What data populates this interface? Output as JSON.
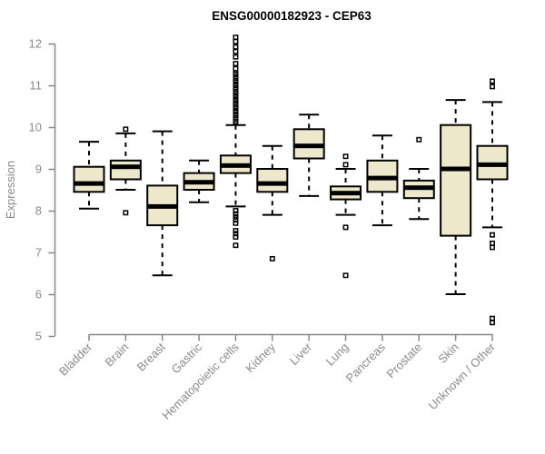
{
  "chart_data": {
    "type": "boxplot",
    "title": "ENSG00000182923 - CEP63",
    "ylabel": "Expression",
    "xlabel": "",
    "ylim": [
      5,
      12
    ],
    "yticks": [
      5,
      6,
      7,
      8,
      9,
      10,
      11,
      12
    ],
    "grid": false,
    "legend": "none",
    "categories": [
      "Bladder",
      "Brain",
      "Breast",
      "Gastric",
      "Hematopoietic cells",
      "Kidney",
      "Liver",
      "Lung",
      "Pancreas",
      "Prostate",
      "Skin",
      "Unknown / Other"
    ],
    "boxes": [
      {
        "category": "Bladder",
        "low": 8.05,
        "q1": 8.45,
        "median": 8.65,
        "q3": 9.05,
        "high": 9.65,
        "outliers": []
      },
      {
        "category": "Brain",
        "low": 8.5,
        "q1": 8.75,
        "median": 9.05,
        "q3": 9.2,
        "high": 9.85,
        "outliers": [
          9.95,
          7.95
        ]
      },
      {
        "category": "Breast",
        "low": 6.45,
        "q1": 7.65,
        "median": 8.1,
        "q3": 8.6,
        "high": 9.9,
        "outliers": []
      },
      {
        "category": "Gastric",
        "low": 8.2,
        "q1": 8.5,
        "median": 8.68,
        "q3": 8.9,
        "high": 9.2,
        "outliers": []
      },
      {
        "category": "Hematopoietic cells",
        "low": 8.1,
        "q1": 8.9,
        "median": 9.08,
        "q3": 9.32,
        "high": 10.05,
        "outliers": [
          12.15,
          12.05,
          11.92,
          11.81,
          11.68,
          11.52,
          11.4,
          11.3,
          11.26,
          11.21,
          11.17,
          11.12,
          11.08,
          11.03,
          10.99,
          10.94,
          10.9,
          10.85,
          10.81,
          10.76,
          10.72,
          10.67,
          10.63,
          10.58,
          10.54,
          10.49,
          10.45,
          10.4,
          10.36,
          10.31,
          10.27,
          10.22,
          10.18,
          10.13,
          8.0,
          7.92,
          7.85,
          7.78,
          7.7,
          7.52,
          7.45,
          7.37,
          7.17
        ]
      },
      {
        "category": "Kidney",
        "low": 7.9,
        "q1": 8.45,
        "median": 8.65,
        "q3": 9.0,
        "high": 9.55,
        "outliers": [
          6.85
        ]
      },
      {
        "category": "Liver",
        "low": 8.35,
        "q1": 9.25,
        "median": 9.55,
        "q3": 9.95,
        "high": 10.3,
        "outliers": []
      },
      {
        "category": "Lung",
        "low": 7.9,
        "q1": 8.27,
        "median": 8.42,
        "q3": 8.58,
        "high": 9.0,
        "outliers": [
          9.3,
          9.1,
          7.6,
          6.45
        ]
      },
      {
        "category": "Pancreas",
        "low": 7.65,
        "q1": 8.45,
        "median": 8.78,
        "q3": 9.2,
        "high": 9.8,
        "outliers": []
      },
      {
        "category": "Prostate",
        "low": 7.8,
        "q1": 8.3,
        "median": 8.55,
        "q3": 8.72,
        "high": 9.0,
        "outliers": [
          9.7
        ]
      },
      {
        "category": "Skin",
        "low": 6.0,
        "q1": 7.4,
        "median": 9.0,
        "q3": 10.05,
        "high": 10.65,
        "outliers": []
      },
      {
        "category": "Unknown / Other",
        "low": 7.6,
        "q1": 8.75,
        "median": 9.1,
        "q3": 9.55,
        "high": 10.6,
        "outliers": [
          11.1,
          10.97,
          7.42,
          7.22,
          7.12,
          5.42,
          5.32
        ]
      }
    ],
    "colors": {
      "box_fill": "#EDE7CB",
      "box_stroke": "#000000",
      "median": "#000000",
      "whisker": "#000000",
      "outlier": "#000000",
      "axis": "#878787",
      "tick_label": "#8A8A8A",
      "title": "#000000",
      "background": "#FFFFFF"
    }
  }
}
